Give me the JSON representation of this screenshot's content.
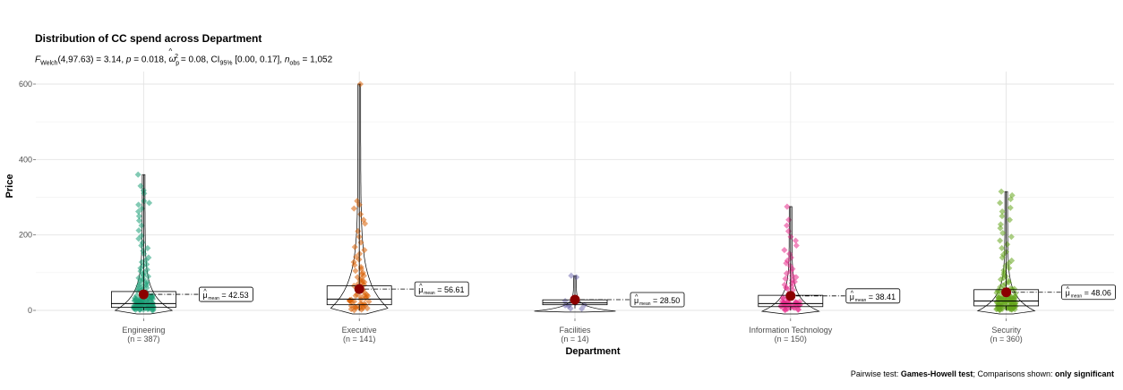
{
  "chart_data": {
    "type": "violin-box-scatter",
    "title": "Distribution of CC spend across Department",
    "subtitle": {
      "stat_label": "F",
      "stat_sub": "Welch",
      "stat_rest": "(4,97.63) = 3.14, ",
      "p_label": "p",
      "p_rest": " = 0.018, ",
      "omega_label": "ω",
      "omega_sup": "2",
      "omega_sub": "p",
      "omega_rest": " = 0.08, CI",
      "ci_sub": "95%",
      "ci_rest": " [0.00, 0.17], ",
      "n_label": "n",
      "n_sub": "obs",
      "n_rest": " = 1,052"
    },
    "xlabel": "Department",
    "ylabel": "Price",
    "ylim": [
      -10,
      640
    ],
    "yticks": [
      0,
      200,
      400,
      600
    ],
    "grid": true,
    "caption": {
      "prefix": "Pairwise test: ",
      "test": "Games-Howell test",
      "middle": "; Comparisons shown: ",
      "shown": "only significant"
    },
    "mean_label_prefix": "μ",
    "mean_label_sub": "mean",
    "groups": [
      {
        "name": "Engineering",
        "n_label": "(n = 387)",
        "color": "#1B9E77",
        "mean": 42.53,
        "mean_label": "42.53",
        "q1": 8,
        "median": 18,
        "q3": 50,
        "whisker_low": 0,
        "whisker_high": 360,
        "outliers": [
          360,
          330,
          318,
          310,
          290,
          285,
          280,
          270,
          262,
          250,
          238,
          225,
          212,
          198,
          190,
          180,
          172,
          165,
          158,
          150,
          140,
          133,
          128,
          122,
          118,
          112,
          108,
          104,
          100,
          96,
          92,
          90,
          86,
          83,
          80,
          78,
          75,
          72,
          70,
          67,
          65,
          63,
          60,
          58,
          56,
          54,
          52
        ]
      },
      {
        "name": "Executive",
        "n_label": "(n = 141)",
        "color": "#D95F02",
        "mean": 56.61,
        "mean_label": "56.61",
        "q1": 15,
        "median": 30,
        "q3": 65,
        "whisker_low": 0,
        "whisker_high": 600,
        "outliers": [
          600,
          290,
          280,
          270,
          255,
          240,
          230,
          210,
          195,
          180,
          168,
          160,
          150,
          142,
          135,
          128,
          120,
          115,
          110,
          105,
          100,
          96,
          92,
          88,
          84,
          80,
          78,
          75,
          72,
          70,
          68
        ]
      },
      {
        "name": "Facilities",
        "n_label": "(n = 14)",
        "color": "#7570B3",
        "mean": 28.5,
        "mean_label": "28.50",
        "q1": 15,
        "median": 20,
        "q3": 28,
        "whisker_low": 5,
        "whisker_high": 92,
        "outliers": [
          92,
          88
        ]
      },
      {
        "name": "Information Technology",
        "n_label": "(n = 150)",
        "color": "#E7298A",
        "mean": 38.41,
        "mean_label": "38.41",
        "q1": 10,
        "median": 18,
        "q3": 40,
        "whisker_low": 0,
        "whisker_high": 275,
        "outliers": [
          275,
          240,
          225,
          210,
          195,
          185,
          172,
          160,
          150,
          140,
          132,
          125,
          118,
          110,
          104,
          98,
          92,
          88,
          84,
          80,
          76,
          72,
          68,
          64,
          60,
          57,
          54
        ]
      },
      {
        "name": "Security",
        "n_label": "(n = 360)",
        "color": "#66A61E",
        "mean": 48.06,
        "mean_label": "48.06",
        "q1": 12,
        "median": 25,
        "q3": 55,
        "whisker_low": 0,
        "whisker_high": 315,
        "outliers": [
          315,
          305,
          295,
          285,
          272,
          262,
          250,
          240,
          228,
          218,
          205,
          195,
          185,
          175,
          165,
          155,
          148,
          140,
          132,
          125,
          118,
          112,
          106,
          100,
          95,
          90,
          86,
          82,
          78,
          74,
          70,
          66,
          62,
          58
        ]
      }
    ]
  }
}
